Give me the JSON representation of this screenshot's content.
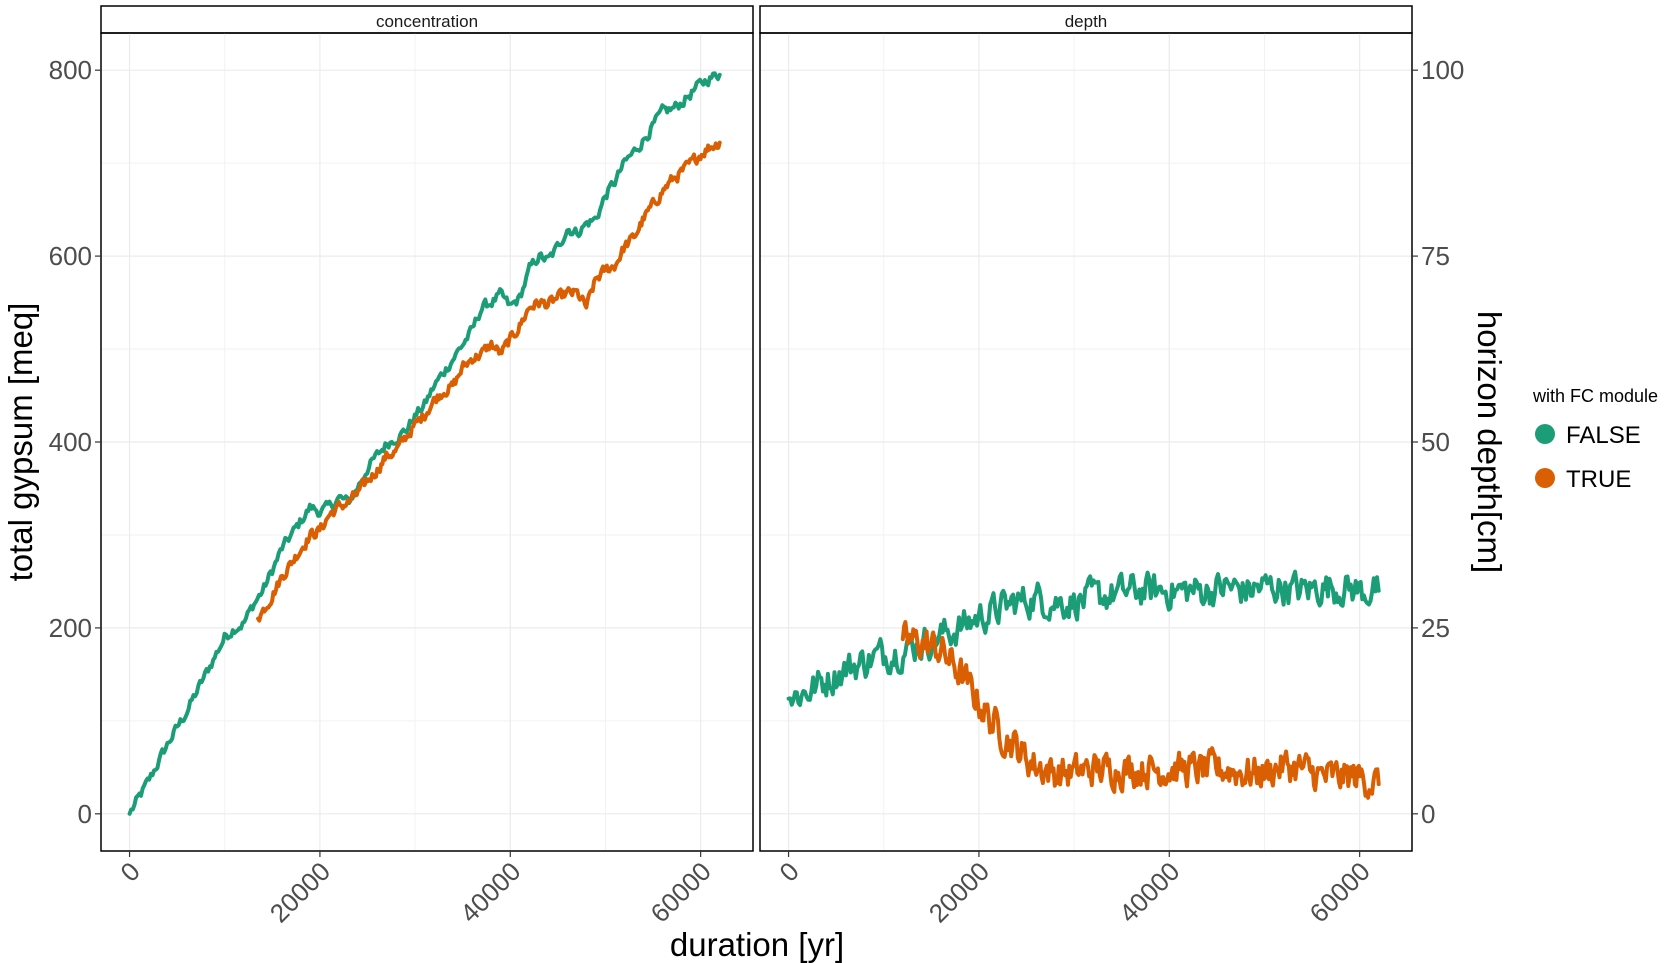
{
  "chart_data": {
    "type": "line",
    "x_label": "duration [yr]",
    "y_label_left": "total gypsum [meq]",
    "y_label_right": "horizon depth[cm]",
    "x_ticks": [
      0,
      20000,
      40000,
      60000
    ],
    "xlim": [
      -3000,
      65500
    ],
    "legend": {
      "title": "with FC module",
      "placement": "right",
      "entries": [
        {
          "label": "FALSE",
          "color": "#1b9e77"
        },
        {
          "label": "TRUE",
          "color": "#d95f02"
        }
      ]
    },
    "grid": true,
    "panels": [
      {
        "strip": "concentration",
        "ylim": [
          -40,
          840
        ],
        "y_ticks": [
          0,
          200,
          400,
          600,
          800
        ],
        "series": [
          {
            "name": "FALSE",
            "color": "#1b9e77",
            "x": [
              0,
              2000,
              4000,
              6000,
              8000,
              10000,
              11000,
              12000,
              13000,
              14000,
              15000,
              16000,
              17000,
              18000,
              19000,
              20000,
              21000,
              22000,
              23000,
              24000,
              25000,
              26000,
              27000,
              28000,
              29000,
              30000,
              31000,
              32000,
              33000,
              34000,
              35000,
              36000,
              37000,
              38000,
              39000,
              40000,
              41000,
              42000,
              43000,
              44000,
              45000,
              46000,
              47000,
              48000,
              49000,
              50000,
              51000,
              52000,
              53000,
              54000,
              55000,
              56000,
              57000,
              58000,
              59000,
              60000,
              61000,
              62000
            ],
            "y": [
              0,
              35,
              75,
              110,
              150,
              190,
              200,
              205,
              225,
              240,
              262,
              285,
              300,
              315,
              330,
              325,
              330,
              340,
              335,
              352,
              372,
              385,
              398,
              405,
              412,
              428,
              440,
              460,
              475,
              490,
              505,
              520,
              545,
              550,
              558,
              545,
              555,
              585,
              600,
              595,
              610,
              630,
              625,
              635,
              640,
              665,
              680,
              700,
              712,
              725,
              740,
              755,
              758,
              765,
              775,
              785,
              792,
              795
            ]
          },
          {
            "name": "TRUE",
            "color": "#d95f02",
            "x": [
              13500,
              15000,
              16000,
              17000,
              18000,
              19000,
              20000,
              21000,
              22000,
              23000,
              24000,
              25000,
              26000,
              27000,
              28000,
              29000,
              30000,
              31000,
              32000,
              33000,
              34000,
              35000,
              36000,
              37000,
              38000,
              39000,
              40000,
              41000,
              42000,
              43000,
              44000,
              45000,
              46000,
              47000,
              48000,
              49000,
              50000,
              51000,
              52000,
              53000,
              54000,
              55000,
              56000,
              57000,
              58000,
              59000,
              60000,
              61000,
              62000
            ],
            "y": [
              210,
              235,
              255,
              270,
              285,
              300,
              305,
              322,
              330,
              335,
              345,
              358,
              370,
              385,
              390,
              405,
              418,
              430,
              445,
              455,
              460,
              480,
              490,
              495,
              505,
              495,
              510,
              525,
              545,
              550,
              548,
              555,
              560,
              560,
              545,
              575,
              585,
              590,
              610,
              620,
              640,
              655,
              670,
              682,
              690,
              700,
              710,
              718,
              722
            ]
          }
        ]
      },
      {
        "strip": "depth",
        "ylim": [
          -5,
          105
        ],
        "y_ticks": [
          0,
          25,
          50,
          75,
          100
        ],
        "series": [
          {
            "name": "FALSE",
            "color": "#1b9e77",
            "x": [
              0,
              2000,
              4000,
              6000,
              8000,
              10000,
              12000,
              14000,
              16000,
              18000,
              20000,
              22000,
              24000,
              26000,
              28000,
              30000,
              32000,
              34000,
              36000,
              38000,
              40000,
              42000,
              44000,
              46000,
              48000,
              50000,
              52000,
              54000,
              56000,
              58000,
              60000,
              62000
            ],
            "y": [
              15.5,
              16.5,
              18,
              19.5,
              20.5,
              21.5,
              22,
              23,
              24,
              25,
              26.5,
              27.5,
              28.5,
              29,
              28.5,
              28.5,
              29,
              29.5,
              30,
              30,
              30,
              30,
              30,
              30.5,
              30,
              30.5,
              30.5,
              30,
              30.5,
              30.5,
              30,
              30
            ]
          },
          {
            "name": "TRUE",
            "color": "#d95f02",
            "x": [
              12000,
              14000,
              16000,
              17000,
              18000,
              19000,
              20000,
              21000,
              22000,
              23000,
              24000,
              25000,
              26000,
              27000,
              28000,
              30000,
              32000,
              34000,
              36000,
              38000,
              40000,
              42000,
              44000,
              46000,
              48000,
              50000,
              52000,
              54000,
              56000,
              58000,
              60000,
              62000
            ],
            "y": [
              23.5,
              23,
              22,
              20.5,
              19,
              17,
              15,
              13,
              11.5,
              10,
              9,
              7.5,
              6.5,
              6,
              5.5,
              5.5,
              6,
              6,
              6,
              6,
              6,
              6,
              6,
              6,
              5.5,
              5.5,
              6.5,
              6,
              5,
              5,
              5,
              4
            ]
          }
        ]
      }
    ]
  }
}
